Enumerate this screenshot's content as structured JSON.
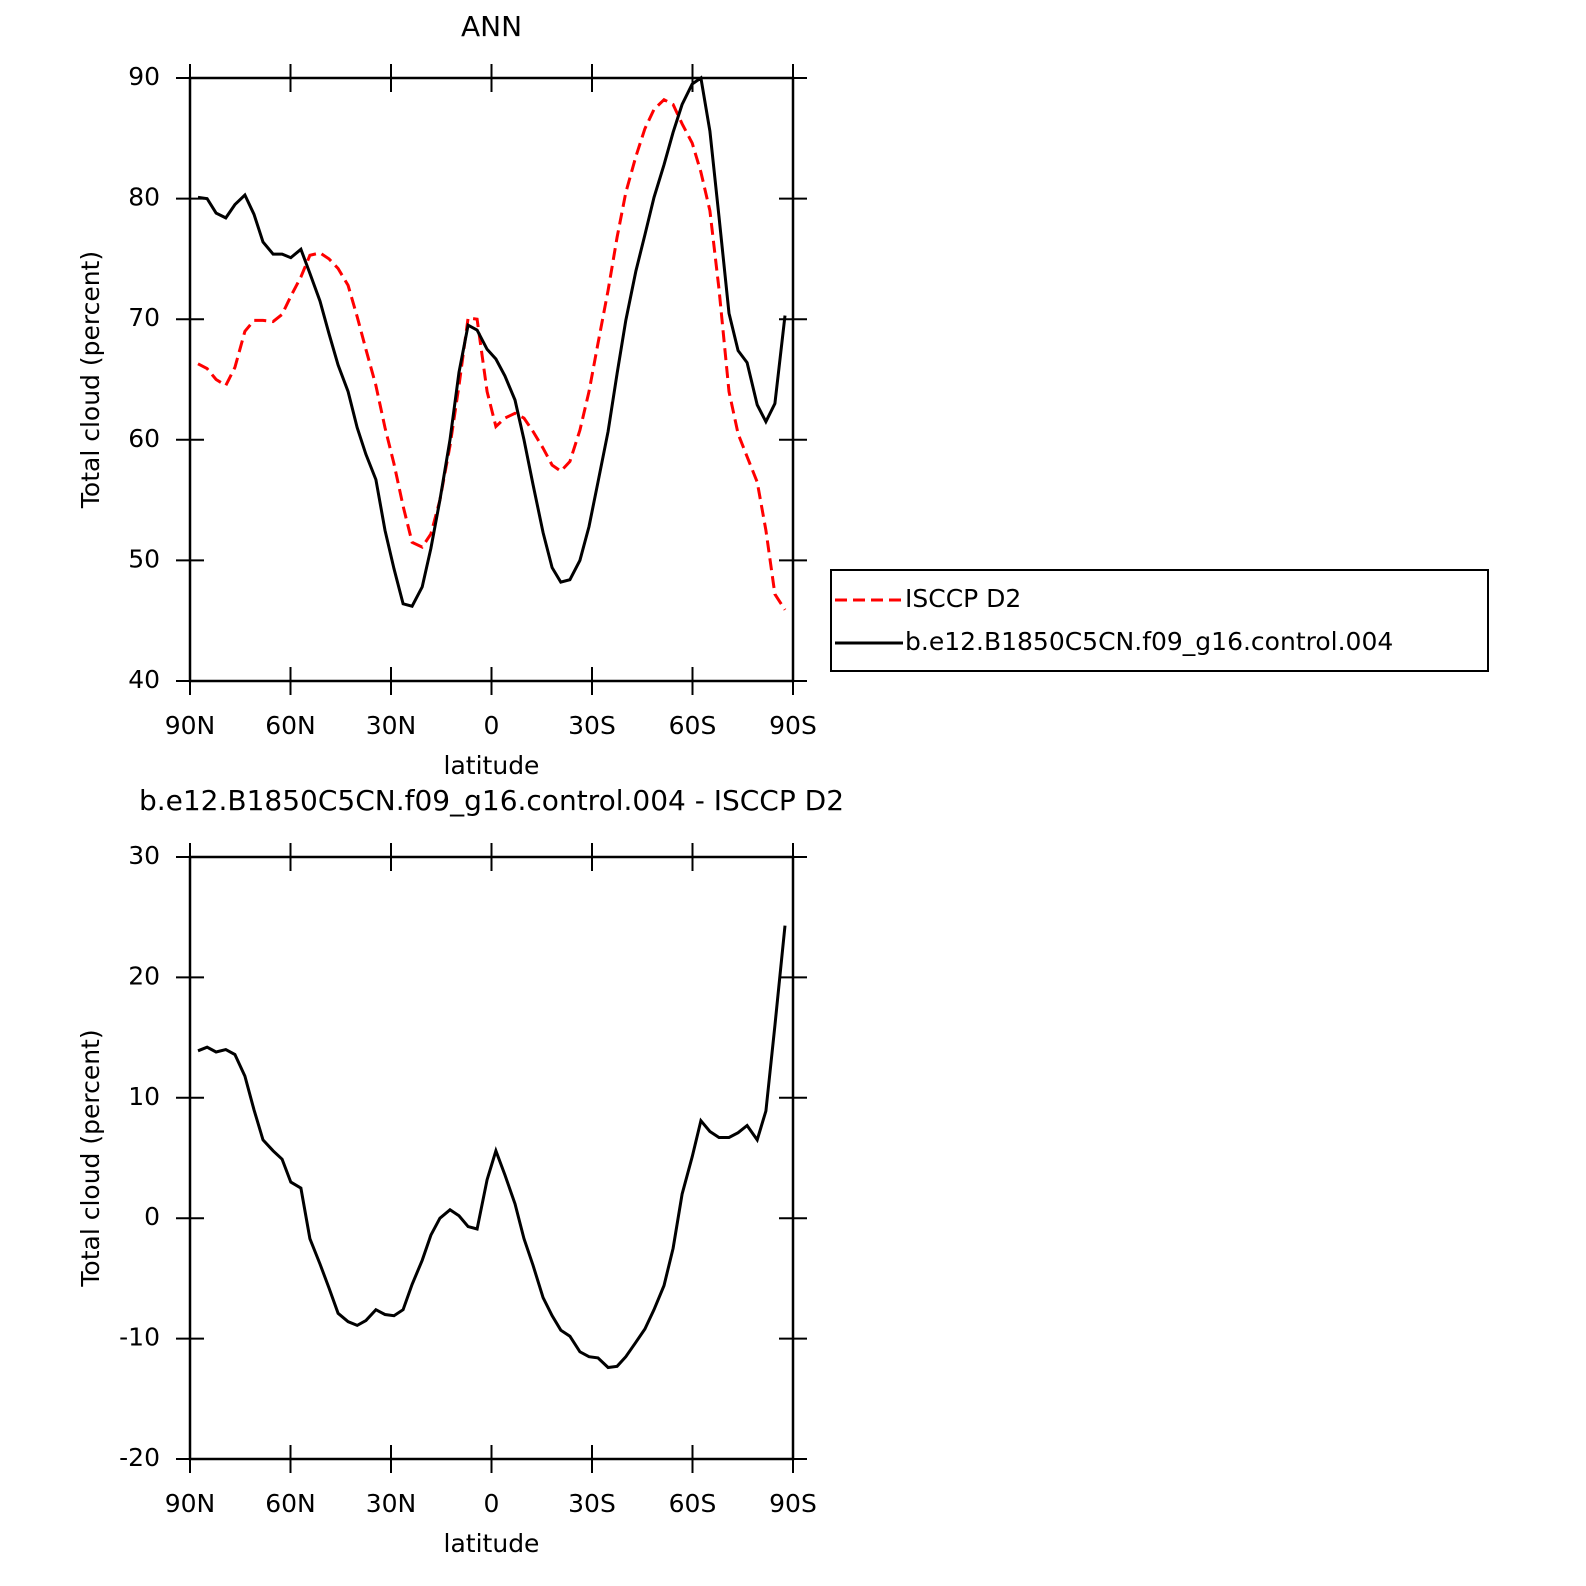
{
  "chart_data": [
    {
      "type": "line",
      "title": "ANN",
      "xlabel": "latitude",
      "ylabel": "Total cloud (percent)",
      "xlim": [
        90,
        -90
      ],
      "xticks": [
        {
          "value": 90,
          "label": "90N"
        },
        {
          "value": 60,
          "label": "60N"
        },
        {
          "value": 30,
          "label": "30N"
        },
        0,
        {
          "value": -30,
          "label": "30S"
        },
        {
          "value": -60,
          "label": "60S"
        },
        {
          "value": -90,
          "label": "90S"
        }
      ],
      "ylim": [
        40,
        90
      ],
      "yticks": [
        40,
        50,
        60,
        70,
        80,
        90
      ],
      "legend": "right",
      "x": [
        87.6,
        84.9,
        82.2,
        79.3,
        76.6,
        73.6,
        70.9,
        68.2,
        65.2,
        62.5,
        59.9,
        56.9,
        54.2,
        51.2,
        48.5,
        45.8,
        42.8,
        40.1,
        37.5,
        34.5,
        31.8,
        29.1,
        26.4,
        23.7,
        20.7,
        18.1,
        15.4,
        12.4,
        9.7,
        7.0,
        4.3,
        1.3,
        -1.3,
        -4.0,
        -7.0,
        -9.7,
        -12.4,
        -15.4,
        -18.1,
        -20.7,
        -23.4,
        -26.4,
        -29.1,
        -31.8,
        -34.8,
        -37.5,
        -40.1,
        -43.1,
        -45.8,
        -48.5,
        -51.5,
        -54.2,
        -56.9,
        -59.9,
        -62.5,
        -65.2,
        -67.9,
        -70.9,
        -73.6,
        -76.3,
        -79.3,
        -81.9,
        -84.6,
        -87.6
      ],
      "series": [
        {
          "name": "ISCCP D2",
          "color": "#ff0000",
          "dash": true,
          "values": [
            66.3,
            65.9,
            65,
            64.5,
            66,
            69,
            69.9,
            69.9,
            69.8,
            70.4,
            71.9,
            73.5,
            75.3,
            75.5,
            75,
            74.2,
            72.8,
            70.2,
            67.5,
            64.5,
            61,
            58,
            54.5,
            51.5,
            51.1,
            52.2,
            55,
            59.5,
            64.5,
            70.1,
            70,
            64,
            61.1,
            61.8,
            62.2,
            61.8,
            60.7,
            59.3,
            57.9,
            57.4,
            58.2,
            60.8,
            64,
            68,
            72.4,
            76.8,
            80.5,
            83.5,
            85.8,
            87.4,
            88.2,
            87.8,
            86.2,
            84.6,
            82.2,
            79,
            72.5,
            64,
            60.5,
            58.6,
            56.5,
            52.5,
            47.2,
            45.9
          ]
        },
        {
          "name": "b.e12.B1850C5CN.f09_g16.control.004",
          "color": "#000000",
          "dash": false,
          "values": [
            80.1,
            80.0,
            78.8,
            78.4,
            79.5,
            80.3,
            78.7,
            76.4,
            75.4,
            75.4,
            75.1,
            75.8,
            73.8,
            71.5,
            68.8,
            66.2,
            64,
            61,
            58.8,
            56.7,
            52.5,
            49.3,
            46.4,
            46.2,
            47.8,
            51,
            55,
            60,
            65.6,
            69.5,
            69.1,
            67.5,
            66.7,
            65.3,
            63.3,
            60,
            56.3,
            52.3,
            49.4,
            48.2,
            48.4,
            50,
            52.8,
            56.5,
            60.7,
            65.5,
            69.9,
            74,
            77,
            80.1,
            82.8,
            85.5,
            87.8,
            89.5,
            90,
            85.6,
            78.5,
            70.5,
            67.4,
            66.4,
            62.9,
            61.5,
            63,
            70.3
          ]
        }
      ]
    },
    {
      "type": "line",
      "title": "b.e12.B1850C5CN.f09_g16.control.004 - ISCCP D2",
      "xlabel": "latitude",
      "ylabel": "Total cloud (percent)",
      "xlim": [
        90,
        -90
      ],
      "xticks": [
        {
          "value": 90,
          "label": "90N"
        },
        {
          "value": 60,
          "label": "60N"
        },
        {
          "value": 30,
          "label": "30N"
        },
        0,
        {
          "value": -30,
          "label": "30S"
        },
        {
          "value": -60,
          "label": "60S"
        },
        {
          "value": -90,
          "label": "90S"
        }
      ],
      "ylim": [
        -20,
        30
      ],
      "yticks": [
        -20,
        -10,
        0,
        10,
        20,
        30
      ],
      "x": [
        87.6,
        84.9,
        82.2,
        79.3,
        76.6,
        73.6,
        70.9,
        68.2,
        65.2,
        62.5,
        59.9,
        56.9,
        54.2,
        51.2,
        48.5,
        45.8,
        42.8,
        40.1,
        37.5,
        34.5,
        31.8,
        29.1,
        26.4,
        23.7,
        20.7,
        18.1,
        15.4,
        12.4,
        9.7,
        7.0,
        4.3,
        1.3,
        -1.3,
        -4.0,
        -7.0,
        -9.7,
        -12.4,
        -15.4,
        -18.1,
        -20.7,
        -23.4,
        -26.4,
        -29.1,
        -31.8,
        -34.8,
        -37.5,
        -40.1,
        -43.1,
        -45.8,
        -48.5,
        -51.5,
        -54.2,
        -56.9,
        -59.9,
        -62.5,
        -65.2,
        -67.9,
        -70.9,
        -73.6,
        -76.3,
        -79.3,
        -81.9,
        -84.6,
        -87.6
      ],
      "series": [
        {
          "color": "#000000",
          "dash": false,
          "values": [
            13.9,
            14.2,
            13.8,
            14,
            13.6,
            11.8,
            9,
            6.5,
            5.6,
            4.9,
            3,
            2.5,
            -1.7,
            -3.8,
            -5.8,
            -7.9,
            -8.6,
            -8.9,
            -8.5,
            -7.6,
            -8,
            -8.1,
            -7.6,
            -5.5,
            -3.5,
            -1.4,
            0,
            0.7,
            0.2,
            -0.7,
            -0.9,
            3.2,
            5.6,
            3.6,
            1.2,
            -1.7,
            -3.9,
            -6.6,
            -8.1,
            -9.3,
            -9.8,
            -11.1,
            -11.5,
            -11.6,
            -12.4,
            -12.3,
            -11.5,
            -10.3,
            -9.2,
            -7.6,
            -5.6,
            -2.5,
            2,
            5.1,
            8.1,
            7.2,
            6.7,
            6.7,
            7.1,
            7.7,
            6.5,
            8.9,
            16.0,
            24.3
          ]
        }
      ]
    }
  ]
}
